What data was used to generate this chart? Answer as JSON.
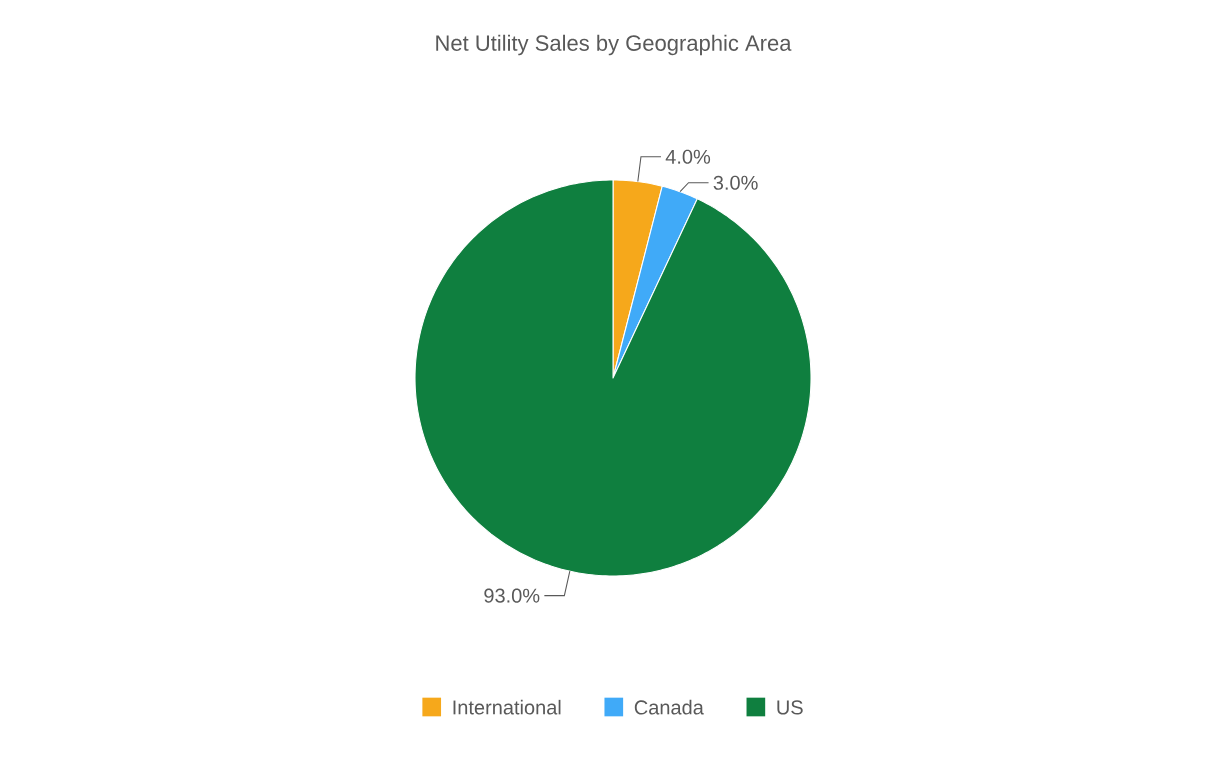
{
  "chart_data": {
    "type": "pie",
    "title": "Net Utility Sales by Geographic Area",
    "categories": [
      "International",
      "Canada",
      "US"
    ],
    "values": [
      4.0,
      3.0,
      93.0
    ],
    "colors": [
      "#f6a81b",
      "#40aaf8",
      "#0f7f3f"
    ],
    "value_labels": [
      "4.0%",
      "3.0%",
      "93.0%"
    ],
    "legend": "bottom"
  }
}
